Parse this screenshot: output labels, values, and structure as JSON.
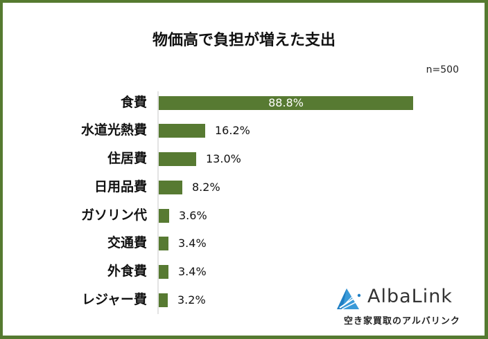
{
  "chart_data": {
    "type": "bar",
    "orientation": "horizontal",
    "title": "物価高で負担が増えた支出",
    "sample_size": "n=500",
    "categories": [
      "食費",
      "水道光熱費",
      "住居費",
      "日用品費",
      "ガソリン代",
      "交通費",
      "外食費",
      "レジャー費"
    ],
    "values": [
      88.8,
      16.2,
      13.0,
      8.2,
      3.6,
      3.4,
      3.4,
      3.2
    ],
    "value_labels": [
      "88.8%",
      "16.2%",
      "13.0%",
      "8.2%",
      "3.6%",
      "3.4%",
      "3.4%",
      "3.2%"
    ],
    "xlabel": "",
    "ylabel": "",
    "unit": "%",
    "grid": false,
    "legend": null,
    "bar_color": "#577a32"
  },
  "frame": {
    "border_color": "#557a30"
  },
  "logo": {
    "name": "AlbaLink",
    "tagline": "空き家買取のアルバリンク"
  }
}
